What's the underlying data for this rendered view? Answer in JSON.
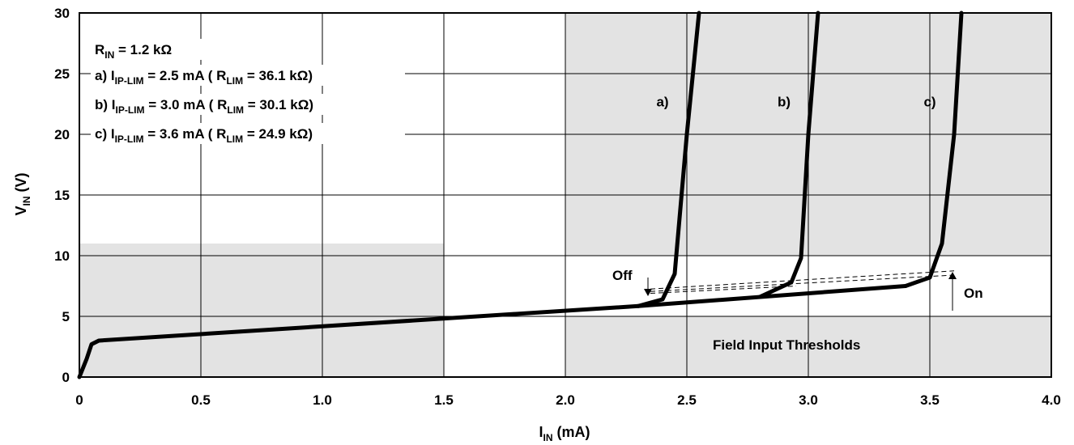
{
  "chart_data": {
    "type": "line",
    "title": "",
    "xlabel": {
      "main": "I",
      "sub": "IN",
      "unit": " (mA)"
    },
    "ylabel": {
      "main": "V",
      "sub": "IN",
      "unit": " (V)"
    },
    "xlim": [
      0,
      4.0
    ],
    "ylim": [
      0,
      30
    ],
    "x_ticks": [
      {
        "value": 0,
        "label": "0"
      },
      {
        "value": 0.5,
        "label": "0.5"
      },
      {
        "value": 1.0,
        "label": "1.0"
      },
      {
        "value": 1.5,
        "label": "1.5"
      },
      {
        "value": 2.0,
        "label": "2.0"
      },
      {
        "value": 2.5,
        "label": "2.5"
      },
      {
        "value": 3.0,
        "label": "3.0"
      },
      {
        "value": 3.5,
        "label": "3.5"
      },
      {
        "value": 4.0,
        "label": "4.0"
      }
    ],
    "y_ticks": [
      {
        "value": 0,
        "label": "0"
      },
      {
        "value": 5,
        "label": "5"
      },
      {
        "value": 10,
        "label": "10"
      },
      {
        "value": 15,
        "label": "15"
      },
      {
        "value": 20,
        "label": "20"
      },
      {
        "value": 25,
        "label": "25"
      },
      {
        "value": 30,
        "label": "30"
      }
    ],
    "grid": true,
    "shaded_regions": [
      {
        "x": [
          0,
          1.5
        ],
        "y": [
          0,
          11
        ]
      },
      {
        "x": [
          2.0,
          4.0
        ],
        "y": [
          0,
          30
        ],
        "exclude_band_y": [
          5,
          10
        ]
      }
    ],
    "shared_curve": [
      [
        0,
        0
      ],
      [
        0.03,
        1.5
      ],
      [
        0.05,
        2.7
      ],
      [
        0.08,
        3.0
      ],
      [
        2.3,
        5.85
      ],
      [
        3.4,
        7.5
      ]
    ],
    "series": [
      {
        "label": "a)",
        "points": [
          [
            2.3,
            5.85
          ],
          [
            2.4,
            6.4
          ],
          [
            2.45,
            8.5
          ],
          [
            2.5,
            20.0
          ],
          [
            2.55,
            30.0
          ]
        ]
      },
      {
        "label": "b)",
        "points": [
          [
            2.8,
            6.6
          ],
          [
            2.93,
            7.8
          ],
          [
            2.97,
            9.8
          ],
          [
            3.0,
            20.0
          ],
          [
            3.04,
            30.0
          ]
        ]
      },
      {
        "label": "c)",
        "points": [
          [
            3.4,
            7.5
          ],
          [
            3.5,
            8.2
          ],
          [
            3.55,
            11.0
          ],
          [
            3.6,
            20.0
          ],
          [
            3.63,
            30.0
          ]
        ]
      }
    ],
    "series_label_positions": [
      [
        2.4,
        22.3
      ],
      [
        2.9,
        22.3
      ],
      [
        3.5,
        22.3
      ]
    ],
    "threshold_lines": [
      [
        [
          2.35,
          7.25
        ],
        [
          3.6,
          8.75
        ]
      ],
      [
        [
          2.35,
          7.05
        ],
        [
          3.6,
          8.4
        ]
      ],
      [
        [
          2.35,
          6.9
        ],
        [
          2.95,
          7.5
        ]
      ]
    ],
    "legend": {
      "rin": {
        "main": "R",
        "sub": "IN",
        "rest": " = 1.2 kΩ"
      },
      "entries": [
        {
          "prefix": "a) I",
          "sub": "IP-LIM",
          "mid": " = 2.5 mA ( R",
          "sub2": "LIM",
          "end": " = 36.1 kΩ)"
        },
        {
          "prefix": "b) I",
          "sub": "IP-LIM",
          "mid": " = 3.0 mA ( R",
          "sub2": "LIM",
          "end": " = 30.1 kΩ)"
        },
        {
          "prefix": "c) I",
          "sub": "IP-LIM",
          "mid": " = 3.6 mA ( R",
          "sub2": "LIM",
          "end": " = 24.9 kΩ)"
        }
      ]
    },
    "annotations": {
      "off": "Off",
      "on": "On",
      "band": "Field Input Thresholds"
    },
    "colors": {
      "curve": "#000000",
      "shade": "#e3e3e3",
      "grid": "#000000"
    }
  }
}
